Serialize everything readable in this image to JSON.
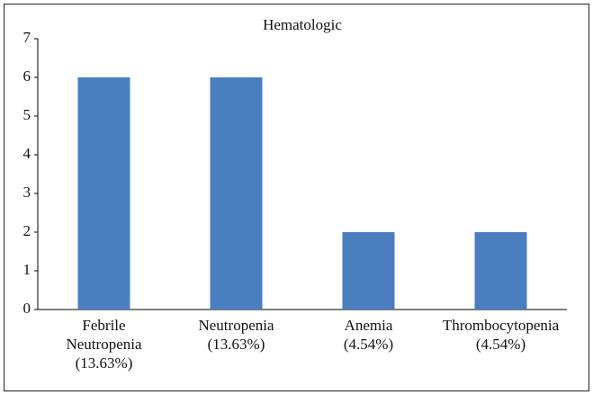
{
  "chart_data": {
    "type": "bar",
    "title": "Hematologic",
    "categories": [
      [
        "Febrile",
        "Neutropenia",
        "(13.63%)"
      ],
      [
        "Neutropenia",
        "(13.63%)"
      ],
      [
        "Anemia",
        "(4.54%)"
      ],
      [
        "Thrombocytopenia",
        "(4.54%)"
      ]
    ],
    "values": [
      6,
      6,
      2,
      2
    ],
    "color": "#4a7ebf",
    "ylim": [
      0,
      7
    ],
    "yticks": [
      0,
      1,
      2,
      3,
      4,
      5,
      6,
      7
    ],
    "grid": false
  }
}
